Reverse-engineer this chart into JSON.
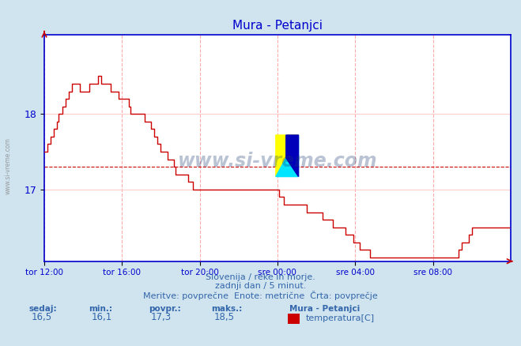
{
  "title": "Mura - Petanjci",
  "bg_color": "#d0e4f0",
  "plot_bg_color": "#ffffff",
  "line_color": "#cc0000",
  "avg_line_color": "#cc0000",
  "avg_value": 17.3,
  "y_min": 16.05,
  "y_max": 19.05,
  "y_ticks": [
    17,
    18
  ],
  "x_tick_labels": [
    "tor 12:00",
    "tor 16:00",
    "tor 20:00",
    "sre 00:00",
    "sre 04:00",
    "sre 08:00"
  ],
  "x_tick_positions": [
    0,
    48,
    96,
    144,
    192,
    240
  ],
  "total_points": 288,
  "subtitle1": "Slovenija / reke in morje.",
  "subtitle2": "zadnji dan / 5 minut.",
  "subtitle3": "Meritve: povprečne  Enote: metrične  Črta: povprečje",
  "footer_labels": [
    "sedaj:",
    "min.:",
    "povpr.:",
    "maks.:"
  ],
  "footer_values": [
    "16,5",
    "16,1",
    "17,3",
    "18,5"
  ],
  "legend_station": "Mura - Petanjci",
  "legend_label": "temperatura[C]",
  "legend_color": "#cc0000",
  "watermark": "www.si-vreme.com",
  "side_label": "www.si-vreme.com",
  "grid_color_v": "#ffaaaa",
  "grid_color_h": "#ffcccc",
  "title_color": "#0000cc",
  "axis_color": "#0000cc",
  "text_color": "#3366aa",
  "temperature_data": [
    17.5,
    17.5,
    17.6,
    17.6,
    17.7,
    17.7,
    17.8,
    17.8,
    17.9,
    18.0,
    18.0,
    18.1,
    18.1,
    18.2,
    18.2,
    18.3,
    18.3,
    18.4,
    18.4,
    18.4,
    18.4,
    18.4,
    18.3,
    18.3,
    18.3,
    18.3,
    18.3,
    18.3,
    18.4,
    18.4,
    18.4,
    18.4,
    18.4,
    18.5,
    18.5,
    18.4,
    18.4,
    18.4,
    18.4,
    18.4,
    18.4,
    18.3,
    18.3,
    18.3,
    18.3,
    18.3,
    18.2,
    18.2,
    18.2,
    18.2,
    18.2,
    18.2,
    18.1,
    18.0,
    18.0,
    18.0,
    18.0,
    18.0,
    18.0,
    18.0,
    18.0,
    18.0,
    17.9,
    17.9,
    17.9,
    17.9,
    17.8,
    17.8,
    17.7,
    17.7,
    17.6,
    17.6,
    17.5,
    17.5,
    17.5,
    17.5,
    17.4,
    17.4,
    17.4,
    17.4,
    17.3,
    17.2,
    17.2,
    17.2,
    17.2,
    17.2,
    17.2,
    17.2,
    17.2,
    17.1,
    17.1,
    17.1,
    17.0,
    17.0,
    17.0,
    17.0,
    17.0,
    17.0,
    17.0,
    17.0,
    17.0,
    17.0,
    17.0,
    17.0,
    17.0,
    17.0,
    17.0,
    17.0,
    17.0,
    17.0,
    17.0,
    17.0,
    17.0,
    17.0,
    17.0,
    17.0,
    17.0,
    17.0,
    17.0,
    17.0,
    17.0,
    17.0,
    17.0,
    17.0,
    17.0,
    17.0,
    17.0,
    17.0,
    17.0,
    17.0,
    17.0,
    17.0,
    17.0,
    17.0,
    17.0,
    17.0,
    17.0,
    17.0,
    17.0,
    17.0,
    17.0,
    17.0,
    17.0,
    17.0,
    17.0,
    16.9,
    16.9,
    16.9,
    16.8,
    16.8,
    16.8,
    16.8,
    16.8,
    16.8,
    16.8,
    16.8,
    16.8,
    16.8,
    16.8,
    16.8,
    16.8,
    16.8,
    16.7,
    16.7,
    16.7,
    16.7,
    16.7,
    16.7,
    16.7,
    16.7,
    16.7,
    16.7,
    16.6,
    16.6,
    16.6,
    16.6,
    16.6,
    16.6,
    16.5,
    16.5,
    16.5,
    16.5,
    16.5,
    16.5,
    16.5,
    16.5,
    16.4,
    16.4,
    16.4,
    16.4,
    16.4,
    16.3,
    16.3,
    16.3,
    16.3,
    16.2,
    16.2,
    16.2,
    16.2,
    16.2,
    16.2,
    16.1,
    16.1,
    16.1,
    16.1,
    16.1,
    16.1,
    16.1,
    16.1,
    16.1,
    16.1,
    16.1,
    16.1,
    16.1,
    16.1,
    16.1,
    16.1,
    16.1,
    16.1,
    16.1,
    16.1,
    16.1,
    16.1,
    16.1,
    16.1,
    16.1,
    16.1,
    16.1,
    16.1,
    16.1,
    16.1,
    16.1,
    16.1,
    16.1,
    16.1,
    16.1,
    16.1,
    16.1,
    16.1,
    16.1,
    16.1,
    16.1,
    16.1,
    16.1,
    16.1,
    16.1,
    16.1,
    16.1,
    16.1,
    16.1,
    16.1,
    16.1,
    16.1,
    16.1,
    16.1,
    16.1,
    16.2,
    16.2,
    16.3,
    16.3,
    16.3,
    16.3,
    16.4,
    16.4,
    16.5,
    16.5,
    16.5,
    16.5,
    16.5,
    16.5,
    16.5,
    16.5,
    16.5,
    16.5,
    16.5,
    16.5,
    16.5,
    16.5,
    16.5,
    16.5,
    16.5,
    16.5,
    16.5,
    16.5,
    16.5,
    16.5,
    16.5,
    16.5
  ]
}
